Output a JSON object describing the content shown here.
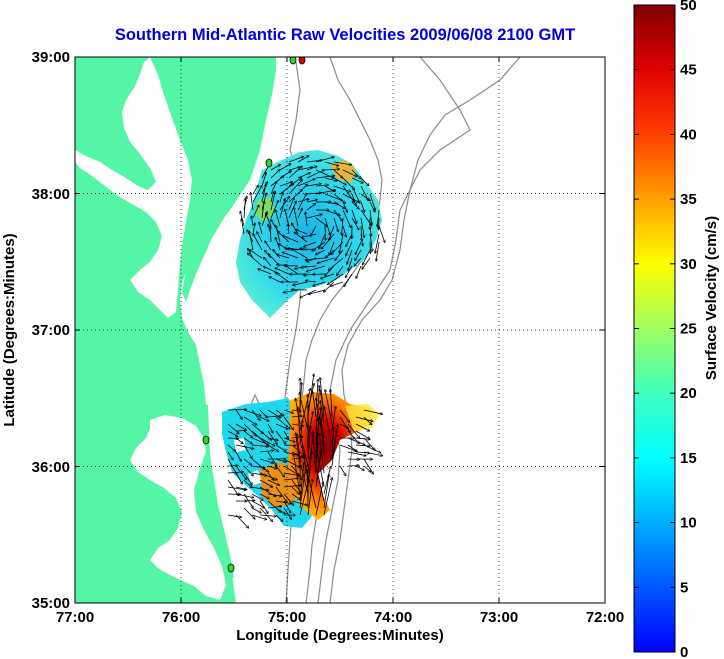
{
  "title": "Southern Mid-Atlantic Raw Velocities 2009/06/08 2100 GMT",
  "map": {
    "xlabel": "Longitude (Degrees:Minutes)",
    "ylabel": "Latitude (Degrees:Minutes)",
    "x_ticks": [
      "77:00",
      "76:00",
      "75:00",
      "74:00",
      "73:00",
      "72:00"
    ],
    "y_ticks": [
      "39:00",
      "38:00",
      "37:00",
      "36:00",
      "35:00"
    ],
    "lon_range": [
      -77,
      -72
    ],
    "lat_range": [
      35,
      39
    ],
    "land_color": "#55f5a8",
    "grid": "dotted",
    "radar_sites_color": "#2bd82b",
    "bathymetry_color": "#8c8c8c"
  },
  "colorbar": {
    "label": "Surface Velocity (cm/s)",
    "ticks": [
      "0",
      "5",
      "10",
      "15",
      "20",
      "25",
      "30",
      "35",
      "40",
      "45",
      "50"
    ],
    "range": [
      0,
      50
    ],
    "colormap": "jet"
  }
}
